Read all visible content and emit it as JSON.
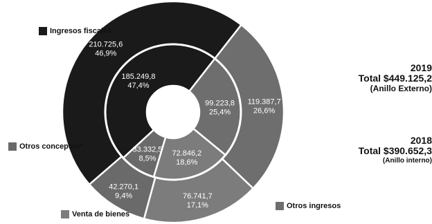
{
  "chart_data": {
    "type": "donut",
    "colors": {
      "ingresos_fiscales": "#1a1a1a",
      "otros_ingresos": "#6e6e6e",
      "venta_de_bienes": "#7c7c7c",
      "otros_conceptos": "#6a6a6a"
    },
    "legend": [
      {
        "key": "ingresos_fiscales",
        "label": "Ingresos fiscales"
      },
      {
        "key": "otros_conceptos",
        "label": "Otros conceptos*"
      },
      {
        "key": "venta_de_bienes",
        "label": "Venta de bienes"
      },
      {
        "key": "otros_ingresos",
        "label": "Otros ingresos"
      }
    ],
    "outer": {
      "year": "2019",
      "total_label": "Total $449.125,2",
      "ring_label": "(Anillo Externo)",
      "slices": [
        {
          "key": "ingresos_fiscales",
          "value": 210725.6,
          "value_label": "210.725,6",
          "pct_label": "46,9%",
          "pct": 46.9
        },
        {
          "key": "otros_ingresos",
          "value": 119387.7,
          "value_label": "119.387,7",
          "pct_label": "26,6%",
          "pct": 26.6
        },
        {
          "key": "venta_de_bienes",
          "value": 76741.7,
          "value_label": "76.741,7",
          "pct_label": "17,1%",
          "pct": 17.1
        },
        {
          "key": "otros_conceptos",
          "value": 42270.1,
          "value_label": "42.270,1",
          "pct_label": "9,4%",
          "pct": 9.4
        }
      ]
    },
    "inner": {
      "year": "2018",
      "total_label": "Total $390.652,3",
      "ring_label": "(Anillo interno)",
      "slices": [
        {
          "key": "ingresos_fiscales",
          "value": 185249.8,
          "value_label": "185.249,8",
          "pct_label": "47,4%",
          "pct": 47.4
        },
        {
          "key": "otros_ingresos",
          "value": 99223.8,
          "value_label": "99.223,8",
          "pct_label": "25,4%",
          "pct": 25.4
        },
        {
          "key": "venta_de_bienes",
          "value": 72846.2,
          "value_label": "72.846,2",
          "pct_label": "18,6%",
          "pct": 18.6
        },
        {
          "key": "otros_conceptos",
          "value": 33332.5,
          "value_label": "33.332,5",
          "pct_label": "8,5%",
          "pct": 8.5
        }
      ]
    }
  }
}
